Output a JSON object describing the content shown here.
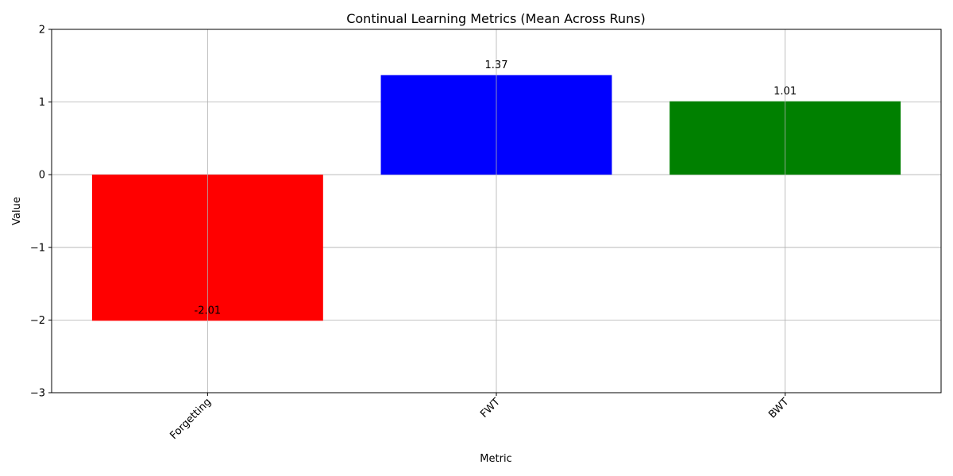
{
  "chart_data": {
    "type": "bar",
    "title": "Continual Learning Metrics (Mean Across Runs)",
    "xlabel": "Metric",
    "ylabel": "Value",
    "categories": [
      "Forgetting",
      "FWT",
      "BWT"
    ],
    "values": [
      -2.01,
      1.37,
      1.01
    ],
    "value_labels": [
      "-2.01",
      "1.37",
      "1.01"
    ],
    "colors": [
      "#ff0000",
      "#0000ff",
      "#008000"
    ],
    "ylim": [
      -3,
      2
    ],
    "yticks": [
      -3,
      -2,
      -1,
      0,
      1,
      2
    ],
    "ytick_labels": [
      "−3",
      "−2",
      "−1",
      "0",
      "1",
      "2"
    ],
    "xtick_rotation": 45,
    "grid": true
  }
}
